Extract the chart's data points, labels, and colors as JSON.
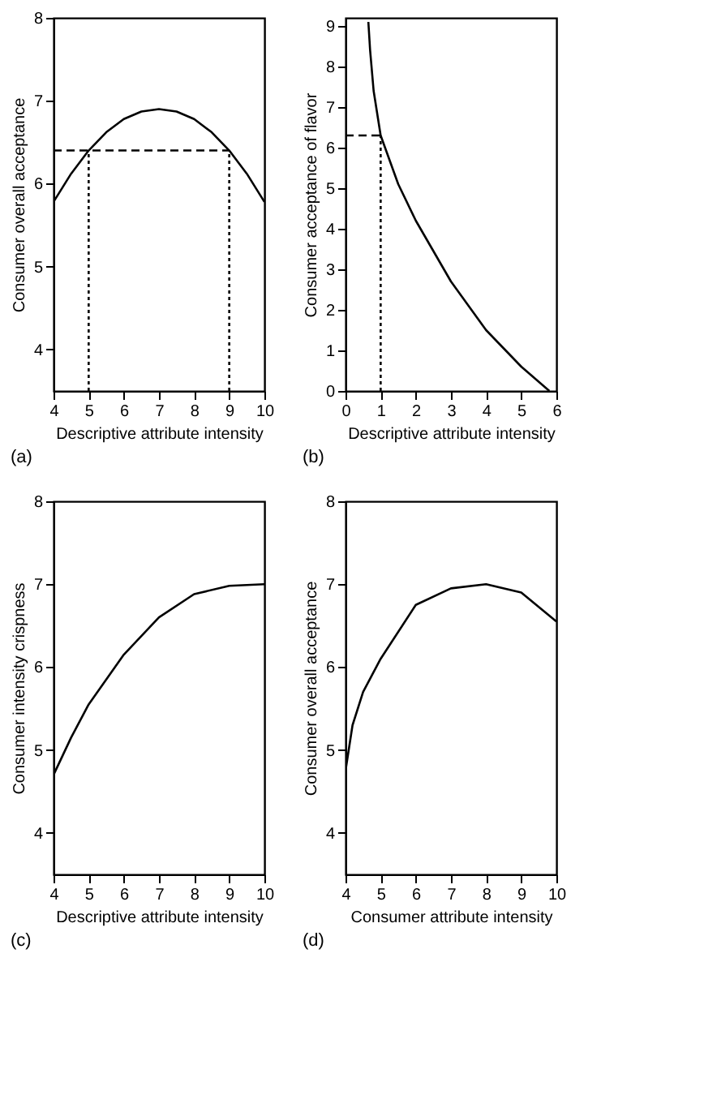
{
  "chart_data": [
    {
      "type": "line",
      "title": "(a)",
      "xlabel": "Descriptive attribute intensity",
      "ylabel": "Consumer overall acceptance",
      "xlim": [
        4,
        10
      ],
      "ylim": [
        3.5,
        8
      ],
      "xticks": [
        4,
        5,
        6,
        7,
        8,
        9,
        10
      ],
      "yticks": [
        4,
        5,
        6,
        7,
        8
      ],
      "grid": false,
      "series": [
        {
          "color": "#000000",
          "line_style": "solid",
          "x": [
            4,
            4.5,
            5,
            5.5,
            6,
            6.5,
            7,
            7.5,
            8,
            8.5,
            9,
            9.5,
            10
          ],
          "values": [
            5.78,
            6.12,
            6.4,
            6.62,
            6.78,
            6.87,
            6.9,
            6.87,
            6.78,
            6.62,
            6.4,
            6.12,
            5.78
          ]
        },
        {
          "color": "#000000",
          "line_style": "dashed",
          "x": [
            4,
            9
          ],
          "values": [
            6.4,
            6.4
          ]
        },
        {
          "color": "#000000",
          "line_style": "dotted",
          "x": [
            5,
            5
          ],
          "values": [
            3.5,
            6.4
          ]
        },
        {
          "color": "#000000",
          "line_style": "dotted",
          "x": [
            9,
            9
          ],
          "values": [
            3.5,
            6.4
          ]
        }
      ]
    },
    {
      "type": "line",
      "title": "(b)",
      "xlabel": "Descriptive attribute intensity",
      "ylabel": "Consumer acceptance of flavor",
      "xlim": [
        0,
        6
      ],
      "ylim": [
        0,
        9.2
      ],
      "xticks": [
        0,
        1,
        2,
        3,
        4,
        5,
        6
      ],
      "yticks": [
        0,
        1,
        2,
        3,
        4,
        5,
        6,
        7,
        8,
        9
      ],
      "grid": false,
      "series": [
        {
          "color": "#000000",
          "line_style": "solid",
          "x": [
            0.65,
            0.7,
            0.8,
            1,
            1.5,
            2,
            3,
            4,
            5,
            5.8
          ],
          "values": [
            9.1,
            8.4,
            7.4,
            6.3,
            5.1,
            4.2,
            2.7,
            1.5,
            0.6,
            0
          ]
        },
        {
          "color": "#000000",
          "line_style": "dashed",
          "x": [
            0,
            1
          ],
          "values": [
            6.3,
            6.3
          ]
        },
        {
          "color": "#000000",
          "line_style": "dotted",
          "x": [
            1,
            1
          ],
          "values": [
            0,
            6.3
          ]
        }
      ]
    },
    {
      "type": "line",
      "title": "(c)",
      "xlabel": "Descriptive attribute intensity",
      "ylabel": "Consumer intensity crispness",
      "xlim": [
        4,
        10
      ],
      "ylim": [
        3.5,
        8
      ],
      "xticks": [
        4,
        5,
        6,
        7,
        8,
        9,
        10
      ],
      "yticks": [
        4,
        5,
        6,
        7,
        8
      ],
      "grid": false,
      "series": [
        {
          "color": "#000000",
          "line_style": "solid",
          "x": [
            4,
            4.5,
            5,
            6,
            7,
            8,
            9,
            10
          ],
          "values": [
            4.7,
            5.15,
            5.55,
            6.15,
            6.6,
            6.88,
            6.98,
            7.0
          ]
        }
      ]
    },
    {
      "type": "line",
      "title": "(d)",
      "xlabel": "Consumer attribute intensity",
      "ylabel": "Consumer overall acceptance",
      "xlim": [
        4,
        10
      ],
      "ylim": [
        3.5,
        8
      ],
      "xticks": [
        4,
        5,
        6,
        7,
        8,
        9,
        10
      ],
      "yticks": [
        4,
        5,
        6,
        7,
        8
      ],
      "grid": false,
      "series": [
        {
          "color": "#000000",
          "line_style": "solid",
          "x": [
            4,
            4.2,
            4.5,
            5,
            6,
            7,
            8,
            9,
            10
          ],
          "values": [
            4.75,
            5.3,
            5.7,
            6.1,
            6.75,
            6.95,
            7.0,
            6.9,
            6.55
          ]
        }
      ]
    }
  ]
}
